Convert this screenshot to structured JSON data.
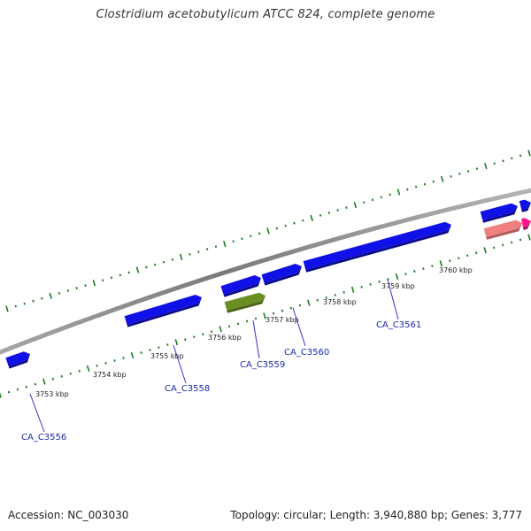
{
  "title": "Clostridium acetobutylicum ATCC 824, complete genome",
  "footer": {
    "accession_label": "Accession:",
    "accession": "NC_003030",
    "topology_label": "Topology:",
    "topology": "circular",
    "length_label": "Length:",
    "length": "3,940,880 bp",
    "genes_label": "Genes:",
    "genes": "3,777"
  },
  "colors": {
    "backbone": "#8c8c8c",
    "tick": "#1f7a1f",
    "gene_blue": "#1010e8",
    "gene_olive": "#6b8e23",
    "gene_pink": "#f08080",
    "gene_magenta": "#ff1493",
    "label_line": "#3333cc"
  },
  "scale_labels": [
    {
      "text": "3753 kbp"
    },
    {
      "text": "3754 kbp"
    },
    {
      "text": "3755 kbp"
    },
    {
      "text": "3756 kbp"
    },
    {
      "text": "3757 kbp"
    },
    {
      "text": "3758 kbp"
    },
    {
      "text": "3759 kbp"
    },
    {
      "text": "3760 kbp"
    }
  ],
  "gene_labels": [
    {
      "text": "CA_C3556"
    },
    {
      "text": "CA_C3558"
    },
    {
      "text": "CA_C3559"
    },
    {
      "text": "CA_C3560"
    },
    {
      "text": "CA_C3561"
    }
  ]
}
